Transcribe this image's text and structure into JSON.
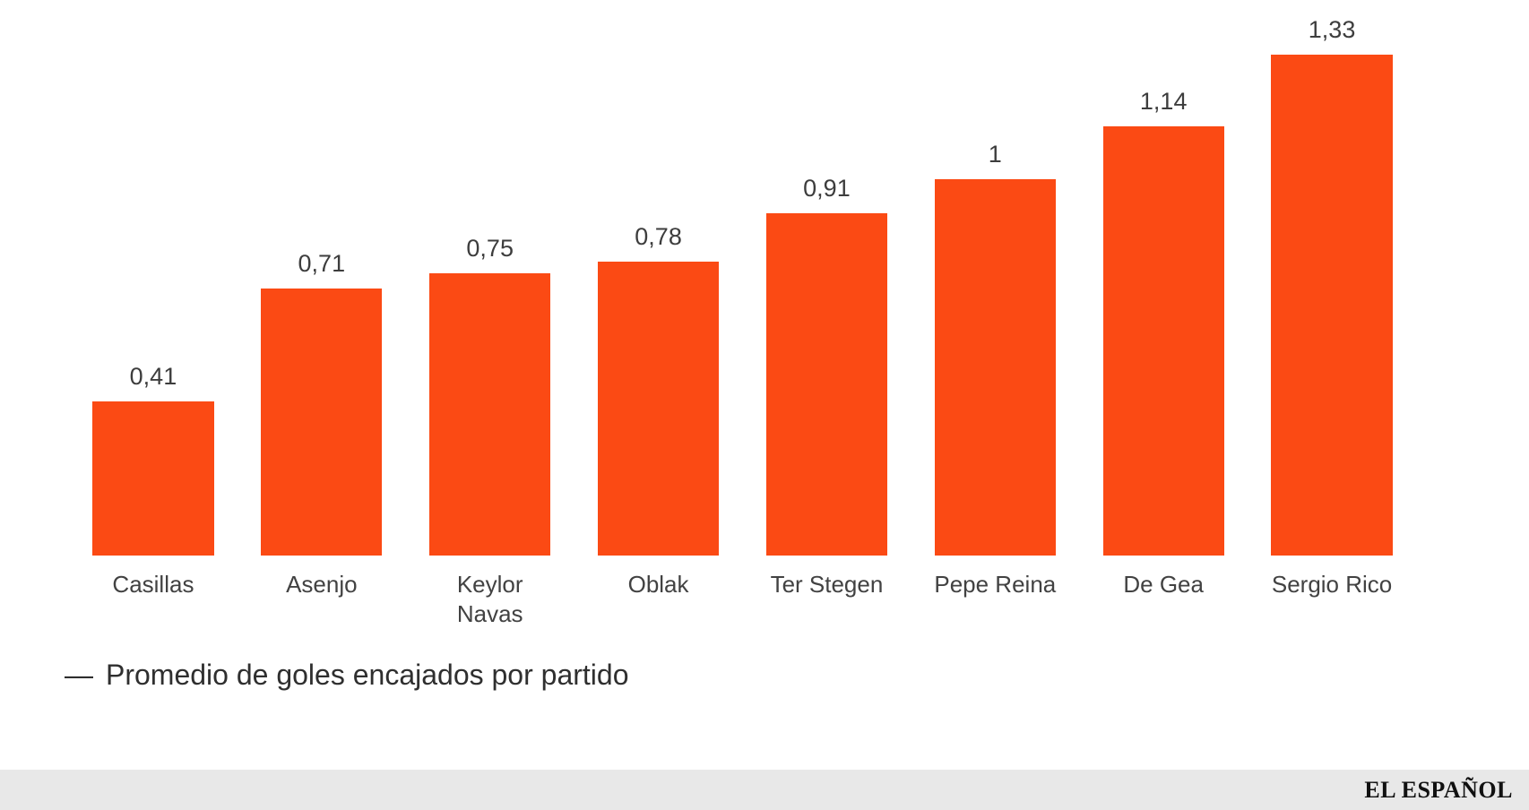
{
  "chart_data": {
    "type": "bar",
    "title": "",
    "categories": [
      "Casillas",
      "Asenjo",
      "Keylor Navas",
      "Oblak",
      "Ter Stegen",
      "Pepe Reina",
      "De Gea",
      "Sergio Rico"
    ],
    "category_display": [
      "Casillas",
      "Asenjo",
      "Keylor\nNavas",
      "Oblak",
      "Ter Stegen",
      "Pepe Reina",
      "De Gea",
      "Sergio Rico"
    ],
    "values": [
      0.41,
      0.71,
      0.75,
      0.78,
      0.91,
      1,
      1.14,
      1.33
    ],
    "value_labels": [
      "0,41",
      "0,71",
      "0,75",
      "0,78",
      "0,91",
      "1",
      "1,14",
      "1,33"
    ],
    "series": [
      {
        "name": "Promedio de goles encajados por partido",
        "values": [
          0.41,
          0.71,
          0.75,
          0.78,
          0.91,
          1,
          1.14,
          1.33
        ]
      }
    ],
    "xlabel": "",
    "ylabel": "",
    "ylim": [
      0,
      1.4
    ],
    "grid": false,
    "bar_color": "#FB4A14",
    "legend_position": "bottom-left"
  },
  "legend": {
    "marker": "—",
    "label": "Promedio de goles encajados por partido"
  },
  "footer": {
    "brand": "EL ESPAÑOL"
  }
}
